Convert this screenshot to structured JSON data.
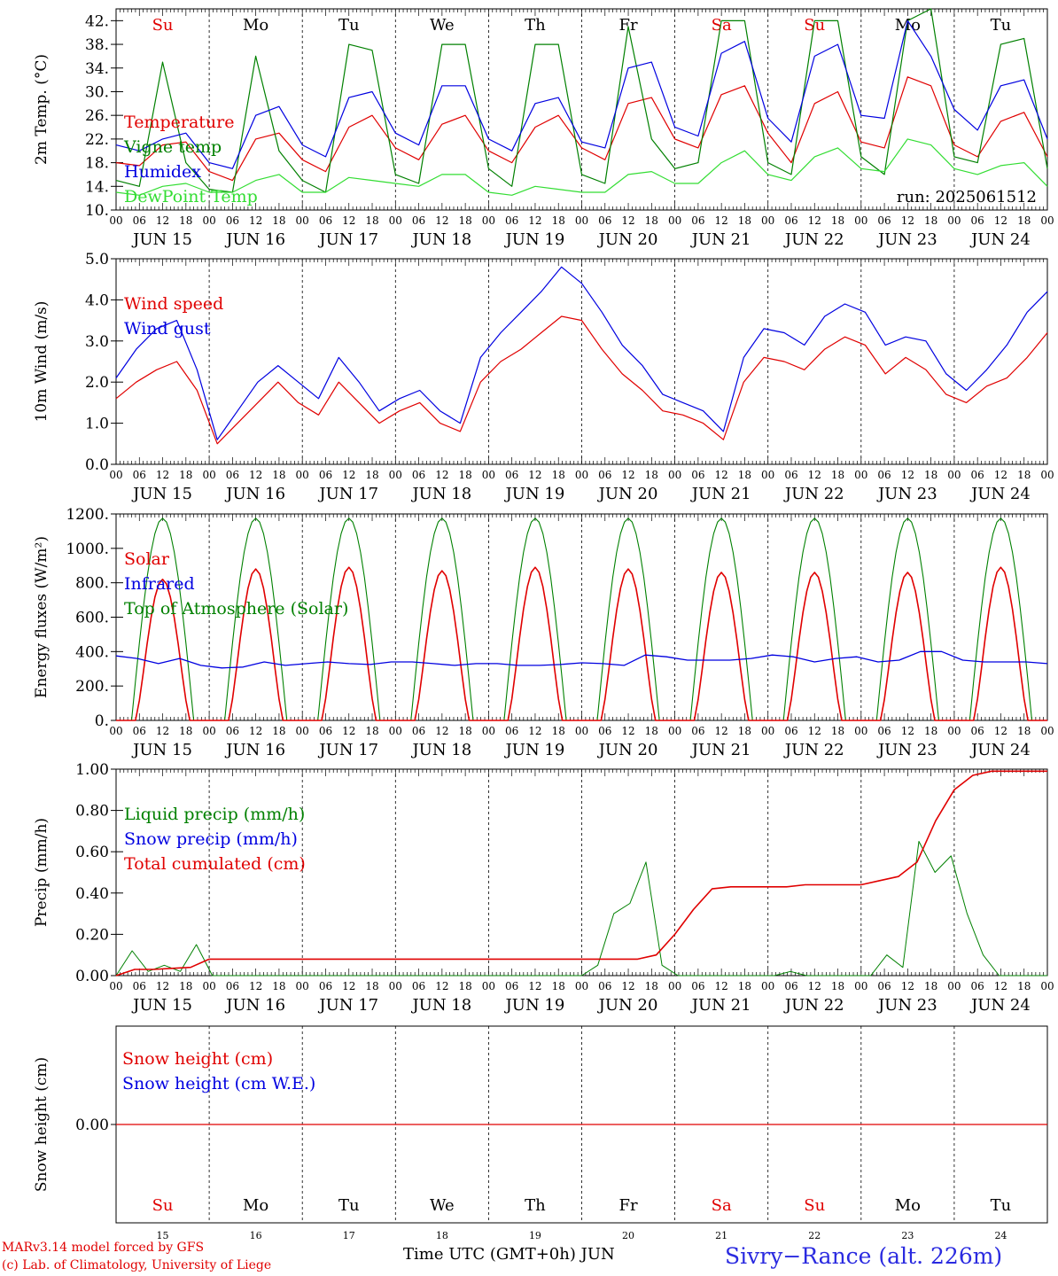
{
  "days": [
    15,
    16,
    17,
    18,
    19,
    20,
    21,
    22,
    23,
    24
  ],
  "month": "JUN",
  "weekdays": [
    "Su",
    "Mo",
    "Tu",
    "We",
    "Th",
    "Fr",
    "Sa",
    "Su",
    "Mo",
    "Tu"
  ],
  "weekday_colors": [
    "#e00000",
    "#000000",
    "#000000",
    "#000000",
    "#000000",
    "#000000",
    "#e00000",
    "#e00000",
    "#000000",
    "#000000"
  ],
  "hour_ticks": [
    "00",
    "06",
    "12",
    "18"
  ],
  "colors": {
    "red": "#e00000",
    "green": "#008000",
    "blue": "#0000e0",
    "lime": "#33dd33"
  },
  "footer": {
    "model": "MARv3.14 model forced by GFS",
    "credit": "(c) Lab. of Climatology, University of Liege",
    "xlabel": "Time UTC (GMT+0h)",
    "month": "JUN",
    "station": "Sivry−Rance (alt. 226m)"
  },
  "chart_data": [
    {
      "type": "line",
      "id": "temp",
      "ylabel": "2m Temp. (°C)",
      "ylim": [
        10,
        44
      ],
      "yticks": [
        10,
        14,
        18,
        22,
        26,
        30,
        34,
        38,
        42
      ],
      "ytick_labels": [
        "10.",
        "14.",
        "18.",
        "22.",
        "26.",
        "30.",
        "34.",
        "38.",
        "42."
      ],
      "annotation": "run: 2025061512",
      "x": "hours since 2025-06-15 00 UTC",
      "step": 6,
      "series": [
        {
          "name": "Temperature",
          "color": "#e00000",
          "values": [
            18,
            17.5,
            21,
            21.5,
            16.5,
            15,
            22,
            23,
            18.5,
            16.5,
            24,
            26,
            20.5,
            18.5,
            24.5,
            26,
            20,
            18,
            24,
            26,
            20.5,
            18.5,
            28,
            29,
            22,
            20.5,
            29.5,
            31,
            23,
            18,
            28,
            30,
            21.5,
            20.5,
            32.5,
            31,
            21,
            19,
            25,
            26.5,
            19
          ]
        },
        {
          "name": "Vigne temp",
          "color": "#008000",
          "values": [
            15,
            14,
            35,
            18,
            13.5,
            13,
            36,
            20,
            15,
            13,
            38,
            37,
            16,
            14.5,
            38,
            38,
            17,
            14,
            38,
            38,
            16,
            14.5,
            41,
            22,
            17,
            18,
            42,
            42,
            18,
            16,
            42,
            42,
            19,
            16,
            42,
            44,
            19,
            18,
            38,
            39,
            17
          ]
        },
        {
          "name": "Humidex",
          "color": "#0000e0",
          "values": [
            21,
            20,
            22,
            23,
            18,
            17,
            26,
            27.5,
            21,
            19,
            29,
            30,
            23,
            21,
            31,
            31,
            22,
            20,
            28,
            29,
            21.5,
            20.5,
            34,
            35,
            24,
            22.5,
            36.5,
            38.5,
            25.5,
            21.5,
            36,
            38,
            26,
            25.5,
            42,
            36,
            27,
            23.5,
            31,
            32,
            22
          ]
        },
        {
          "name": "DewPoint Temp",
          "color": "#33dd33",
          "values": [
            13,
            12.5,
            14,
            14.5,
            13,
            13,
            15,
            16,
            13,
            13,
            15.5,
            15,
            14.5,
            14,
            16,
            16,
            13,
            12.5,
            14,
            13.5,
            13,
            13,
            16,
            16.5,
            14.5,
            14.5,
            18,
            20,
            16,
            15,
            19,
            20.5,
            17,
            16.5,
            22,
            21,
            17,
            16,
            17.5,
            18,
            14
          ]
        }
      ]
    },
    {
      "type": "line",
      "id": "wind",
      "ylabel": "10m Wind (m/s)",
      "ylim": [
        0,
        5
      ],
      "yticks": [
        0,
        1,
        2,
        3,
        4,
        5
      ],
      "ytick_labels": [
        "0.0",
        "1.0",
        "2.0",
        "3.0",
        "4.0",
        "5.0"
      ],
      "x": "hours since 2025-06-15 00 UTC",
      "step": 6,
      "series": [
        {
          "name": "Wind speed",
          "color": "#e00000",
          "values": [
            1.6,
            2,
            2.3,
            2.5,
            1.8,
            0.5,
            1,
            1.5,
            2,
            1.5,
            1.2,
            2,
            1.5,
            1,
            1.3,
            1.5,
            1,
            0.8,
            2,
            2.5,
            2.8,
            3.2,
            3.6,
            3.5,
            2.8,
            2.2,
            1.8,
            1.3,
            1.2,
            1,
            0.6,
            2,
            2.6,
            2.5,
            2.3,
            2.8,
            3.1,
            2.9,
            2.2,
            2.6,
            2.3,
            1.7,
            1.5,
            1.9,
            2.1,
            2.6,
            3.2
          ]
        },
        {
          "name": "Wind gust",
          "color": "#0000e0",
          "values": [
            2.1,
            2.8,
            3.3,
            3.5,
            2.3,
            0.6,
            1.3,
            2,
            2.4,
            2,
            1.6,
            2.6,
            2,
            1.3,
            1.6,
            1.8,
            1.3,
            1,
            2.6,
            3.2,
            3.7,
            4.2,
            4.8,
            4.4,
            3.7,
            2.9,
            2.4,
            1.7,
            1.5,
            1.3,
            0.8,
            2.6,
            3.3,
            3.2,
            2.9,
            3.6,
            3.9,
            3.7,
            2.9,
            3.1,
            3,
            2.2,
            1.8,
            2.3,
            2.9,
            3.7,
            4.2
          ]
        }
      ]
    },
    {
      "type": "line",
      "id": "energy",
      "ylabel": "Energy fluxes (W/m²)",
      "ylim": [
        0,
        1200
      ],
      "yticks": [
        0,
        200,
        400,
        600,
        800,
        1000,
        1200
      ],
      "ytick_labels": [
        "0.",
        "200.",
        "400.",
        "600.",
        "800.",
        "1000.",
        "1200."
      ],
      "x": "hours since 2025-06-15 00 UTC",
      "step": 6,
      "solar_peaks": [
        820,
        880,
        890,
        870,
        890,
        880,
        860,
        860,
        860,
        890
      ],
      "series": [
        {
          "name": "Solar",
          "color": "#e00000"
        },
        {
          "name": "Infrared",
          "color": "#0000e0",
          "values": [
            375,
            360,
            330,
            360,
            320,
            305,
            310,
            340,
            320,
            330,
            340,
            330,
            325,
            340,
            340,
            330,
            320,
            330,
            330,
            320,
            320,
            325,
            335,
            330,
            320,
            380,
            370,
            350,
            350,
            350,
            360,
            380,
            370,
            340,
            360,
            370,
            340,
            350,
            400,
            400,
            350,
            340,
            340,
            340,
            330
          ]
        },
        {
          "name": "Top of Atmosphere (Solar)",
          "color": "#008000",
          "peak": 1175
        }
      ]
    },
    {
      "type": "line",
      "id": "precip",
      "ylabel": "Precip (mm/h)",
      "ylim": [
        0,
        1
      ],
      "yticks": [
        0,
        0.2,
        0.4,
        0.6,
        0.8,
        1.0
      ],
      "ytick_labels": [
        "0.00",
        "0.20",
        "0.40",
        "0.60",
        "0.80",
        "1.00"
      ],
      "x": "hours since 2025-06-15 00 UTC",
      "step": 6,
      "series": [
        {
          "name": "Liquid precip (mm/h)",
          "color": "#008000",
          "values": [
            0,
            0.12,
            0.02,
            0.05,
            0.02,
            0.15,
            0,
            0,
            0,
            0,
            0,
            0,
            0,
            0,
            0,
            0,
            0,
            0,
            0,
            0,
            0,
            0,
            0,
            0,
            0,
            0,
            0,
            0,
            0,
            0,
            0.05,
            0.3,
            0.35,
            0.55,
            0.05,
            0,
            0,
            0,
            0,
            0,
            0,
            0,
            0.02,
            0,
            0,
            0,
            0,
            0,
            0.1,
            0.04,
            0.65,
            0.5,
            0.58,
            0.3,
            0.1,
            0,
            0,
            0,
            0
          ]
        },
        {
          "name": "Snow precip (mm/h)",
          "color": "#0000e0",
          "values": []
        },
        {
          "name": "Total cumulated (cm)",
          "color": "#e00000",
          "values": [
            0,
            0.03,
            0.03,
            0.035,
            0.04,
            0.08,
            0.08,
            0.08,
            0.08,
            0.08,
            0.08,
            0.08,
            0.08,
            0.08,
            0.08,
            0.08,
            0.08,
            0.08,
            0.08,
            0.08,
            0.08,
            0.08,
            0.08,
            0.08,
            0.08,
            0.08,
            0.08,
            0.08,
            0.08,
            0.1,
            0.2,
            0.32,
            0.42,
            0.43,
            0.43,
            0.43,
            0.43,
            0.44,
            0.44,
            0.44,
            0.44,
            0.46,
            0.48,
            0.55,
            0.75,
            0.9,
            0.97,
            0.99,
            0.99,
            0.99,
            0.99
          ]
        }
      ]
    },
    {
      "type": "line",
      "id": "snow",
      "ylabel": "Snow height (cm)",
      "ylim": [
        -1,
        1
      ],
      "yticks": [
        0
      ],
      "ytick_labels": [
        "0.00"
      ],
      "series": [
        {
          "name": "Snow height (cm)",
          "color": "#e00000",
          "values": [
            0,
            0
          ]
        },
        {
          "name": "Snow height (cm W.E.)",
          "color": "#0000e0",
          "values": []
        }
      ]
    }
  ]
}
